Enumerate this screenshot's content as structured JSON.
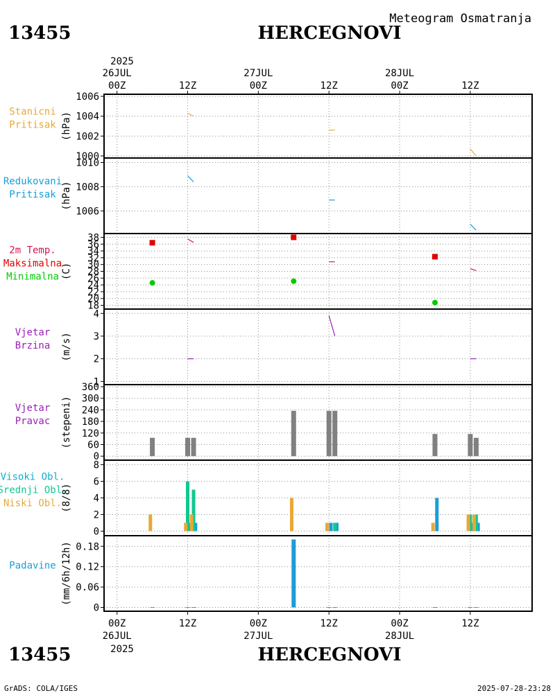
{
  "header": {
    "station_id": "13455",
    "station_name": "HERCEGNOVI",
    "chart_title": "Meteogram Osmatranja"
  },
  "footer": {
    "station_id": "13455",
    "station_name": "HERCEGNOVI",
    "credit": "GrADS: COLA/IGES",
    "timestamp": "2025-07-28-23:28"
  },
  "time_axis": {
    "year": "2025",
    "labels": [
      {
        "hour": 0,
        "time": "00Z",
        "date": "26JUL"
      },
      {
        "hour": 12,
        "time": "12Z",
        "date": ""
      },
      {
        "hour": 24,
        "time": "00Z",
        "date": "27JUL"
      },
      {
        "hour": 36,
        "time": "12Z",
        "date": ""
      },
      {
        "hour": 48,
        "time": "00Z",
        "date": "28JUL"
      },
      {
        "hour": 60,
        "time": "12Z",
        "date": ""
      }
    ]
  },
  "colors": {
    "orange": "#e8a838",
    "blue": "#1a9ed8",
    "crimson": "#d01858",
    "red": "#e00000",
    "green": "#00cc00",
    "purple": "#9a20b8",
    "gray": "#808080",
    "teal": "#10c890",
    "cyan": "#10b0c8"
  },
  "chart_data": [
    {
      "id": "stanicni",
      "type": "line",
      "labels": [
        {
          "text": "Stanicni",
          "color": "#e8a838"
        },
        {
          "text": "Pritisak",
          "color": "#e8a838"
        }
      ],
      "ylabel": "(hPa)",
      "ylim": [
        1000,
        1006
      ],
      "yticks": [
        1000,
        1002,
        1004,
        1006
      ],
      "series": [
        {
          "name": "Stanicni Pritisak",
          "color": "#e8a838",
          "segments": [
            [
              [
                12,
                1004.3
              ],
              [
                13,
                1004.0
              ]
            ],
            [
              [
                36,
                1002.6
              ],
              [
                37,
                1002.6
              ]
            ],
            [
              [
                60,
                1000.7
              ],
              [
                61,
                1000.0
              ]
            ]
          ]
        }
      ]
    },
    {
      "id": "redukovani",
      "type": "line",
      "labels": [
        {
          "text": "Redukovani",
          "color": "#1a9ed8"
        },
        {
          "text": "Pritisak",
          "color": "#1a9ed8"
        }
      ],
      "ylabel": "(hPa)",
      "ylim": [
        1004.3,
        1010.2
      ],
      "yticks": [
        1006,
        1008,
        1010
      ],
      "series": [
        {
          "name": "Redukovani Pritisak",
          "color": "#1a9ed8",
          "segments": [
            [
              [
                12,
                1008.9
              ],
              [
                13,
                1008.4
              ]
            ],
            [
              [
                36,
                1006.9
              ],
              [
                37,
                1006.9
              ]
            ],
            [
              [
                60,
                1004.9
              ],
              [
                61,
                1004.4
              ]
            ]
          ]
        }
      ]
    },
    {
      "id": "temp",
      "type": "line",
      "labels": [
        {
          "text": "2m Temp.",
          "color": "#d01858"
        },
        {
          "text": "Maksimalna",
          "color": "#e00000"
        },
        {
          "text": "Minimalna",
          "color": "#00cc00"
        }
      ],
      "ylabel": "(C)",
      "ylim": [
        17.5,
        38.5
      ],
      "yticks": [
        18,
        20,
        22,
        24,
        26,
        28,
        30,
        32,
        34,
        36,
        38
      ],
      "series": [
        {
          "name": "2m Temp.",
          "color": "#d01858",
          "segments": [
            [
              [
                12,
                37.5
              ],
              [
                13,
                36.5
              ]
            ],
            [
              [
                36,
                30.8
              ],
              [
                37,
                30.8
              ]
            ],
            [
              [
                60,
                28.8
              ],
              [
                61,
                28.2
              ]
            ]
          ]
        },
        {
          "name": "Maksimalna",
          "color": "#e00000",
          "marker": "square",
          "points": [
            [
              6,
              36.4
            ],
            [
              30,
              38.0
            ],
            [
              54,
              32.3
            ]
          ]
        },
        {
          "name": "Minimalna",
          "color": "#00cc00",
          "marker": "circle",
          "points": [
            [
              6,
              24.6
            ],
            [
              30,
              25.1
            ],
            [
              54,
              18.8
            ]
          ]
        }
      ]
    },
    {
      "id": "brzina",
      "type": "line",
      "labels": [
        {
          "text": "Vjetar",
          "color": "#9a20b8"
        },
        {
          "text": "Brzina",
          "color": "#9a20b8"
        }
      ],
      "ylabel": "(m/s)",
      "ylim": [
        0.95,
        4.1
      ],
      "yticks": [
        1,
        2,
        3,
        4
      ],
      "series": [
        {
          "name": "Vjetar Brzina",
          "color": "#9a20b8",
          "segments": [
            [
              [
                12,
                2.0
              ],
              [
                13,
                2.0
              ]
            ],
            [
              [
                36,
                3.9
              ],
              [
                37,
                3.0
              ]
            ],
            [
              [
                60,
                2.0
              ],
              [
                61,
                2.0
              ]
            ]
          ]
        }
      ]
    },
    {
      "id": "pravac",
      "type": "bar",
      "labels": [
        {
          "text": "Vjetar",
          "color": "#9a20b8"
        },
        {
          "text": "Pravac",
          "color": "#9a20b8"
        }
      ],
      "ylabel": "(stepeni)",
      "ylim": [
        -10,
        360
      ],
      "yticks": [
        0,
        60,
        120,
        180,
        240,
        300,
        360
      ],
      "bar_color": "#808080",
      "bars": [
        {
          "t": 6,
          "v": 95
        },
        {
          "t": 12,
          "v": 95
        },
        {
          "t": 13,
          "v": 95
        },
        {
          "t": 30,
          "v": 235
        },
        {
          "t": 36,
          "v": 235
        },
        {
          "t": 37,
          "v": 235
        },
        {
          "t": 54,
          "v": 115
        },
        {
          "t": 60,
          "v": 115
        },
        {
          "t": 61,
          "v": 95
        }
      ]
    },
    {
      "id": "oblaci",
      "type": "bar",
      "labels": [
        {
          "text": "Visoki Obl.",
          "color": "#10b0c8"
        },
        {
          "text": "Srednji Obl.",
          "color": "#10c890"
        },
        {
          "text": "Niski Obl.",
          "color": "#e8a838"
        }
      ],
      "ylabel": "(8/8)",
      "ylim": [
        -0.3,
        8.3
      ],
      "yticks": [
        0,
        2,
        4,
        6,
        8
      ],
      "series": [
        {
          "name": "Visoki Obl.",
          "color": "#1a9ed8",
          "offset": 0.33,
          "values": [
            [
              6,
              0
            ],
            [
              12,
              1
            ],
            [
              13,
              1
            ],
            [
              30,
              0
            ],
            [
              36,
              1
            ],
            [
              37,
              1
            ],
            [
              54,
              4
            ],
            [
              60,
              1
            ],
            [
              61,
              1
            ]
          ]
        },
        {
          "name": "Srednji Obl.",
          "color": "#10c890",
          "offset": 0,
          "values": [
            [
              6,
              0
            ],
            [
              12,
              6
            ],
            [
              13,
              5
            ],
            [
              30,
              0
            ],
            [
              36,
              0
            ],
            [
              37,
              1
            ],
            [
              54,
              0
            ],
            [
              60,
              2
            ],
            [
              61,
              2
            ]
          ]
        },
        {
          "name": "Niski Obl.",
          "color": "#e8a838",
          "offset": -0.33,
          "values": [
            [
              6,
              2
            ],
            [
              12,
              1
            ],
            [
              13,
              2
            ],
            [
              30,
              4
            ],
            [
              36,
              1
            ],
            [
              37,
              0
            ],
            [
              54,
              1
            ],
            [
              60,
              2
            ],
            [
              61,
              2
            ]
          ]
        }
      ]
    },
    {
      "id": "padavine",
      "type": "bar",
      "labels": [
        {
          "text": "Padavine",
          "color": "#1a9ed8"
        }
      ],
      "ylabel": "(mm/6h/12h)",
      "ylim": [
        -0.005,
        0.205
      ],
      "yticks": [
        0,
        0.06,
        0.12,
        0.18
      ],
      "bar_color": "#1a9ed8",
      "bars": [
        {
          "t": 6,
          "v": 0.001
        },
        {
          "t": 12,
          "v": 0.001
        },
        {
          "t": 13,
          "v": 0.001
        },
        {
          "t": 30,
          "v": 0.2
        },
        {
          "t": 36,
          "v": 0.001
        },
        {
          "t": 37,
          "v": 0.001
        },
        {
          "t": 54,
          "v": 0.001
        },
        {
          "t": 60,
          "v": 0.001
        },
        {
          "t": 61,
          "v": 0.001
        }
      ]
    }
  ]
}
